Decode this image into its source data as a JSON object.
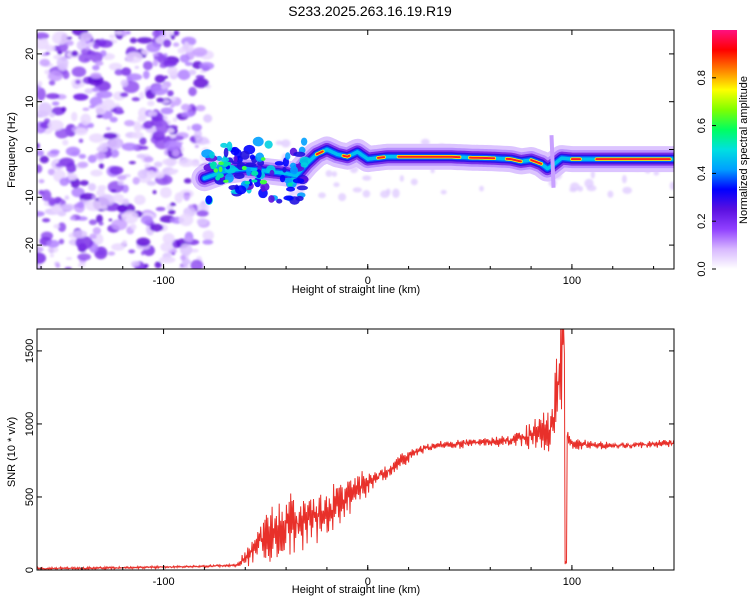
{
  "figure_title": "S233.2025.263.16.19.R19",
  "chart_data": [
    {
      "type": "heatmap",
      "title": "",
      "xlabel": "Height of straight line (km)",
      "ylabel": "Frequency (Hz)",
      "xlim": [
        -162,
        150
      ],
      "ylim": [
        -25,
        25
      ],
      "xticks": [
        -100,
        0,
        100
      ],
      "yticks": [
        -20,
        -10,
        0,
        10,
        20
      ],
      "colorbar": {
        "label": "Normalized spectral amplitude",
        "ticks": [
          0.0,
          0.2,
          0.4,
          0.6,
          0.8
        ],
        "range": [
          0,
          1
        ],
        "colormap": [
          "#ffffff",
          "#d8b8ff",
          "#9040ff",
          "#5a10e0",
          "#0000ff",
          "#00a0ff",
          "#00e0e0",
          "#00ff60",
          "#80ff00",
          "#ffff00",
          "#ff8000",
          "#ff0000",
          "#ff1080"
        ]
      },
      "noise_region_x": [
        -162,
        -80
      ],
      "signal_ridge": {
        "x": [
          -80,
          -70,
          -60,
          -50,
          -40,
          -35,
          -30,
          -25,
          -20,
          -15,
          -10,
          -5,
          0,
          10,
          20,
          30,
          40,
          50,
          60,
          70,
          75,
          80,
          85,
          88,
          90,
          95,
          100,
          110,
          120,
          130,
          140,
          150
        ],
        "freq": [
          -6,
          -4.5,
          -4,
          -4.5,
          -5,
          -5.5,
          -3,
          -1,
          0,
          -1,
          -1.5,
          -0.5,
          -2,
          -1.5,
          -1.5,
          -1.5,
          -1.5,
          -1.7,
          -1.8,
          -2,
          -2.5,
          -2.2,
          -3,
          -4,
          -3.5,
          -1.8,
          -2,
          -2,
          -2,
          -2,
          -2,
          -2
        ]
      }
    },
    {
      "type": "line",
      "title": "",
      "xlabel": "Height of straight line (km)",
      "ylabel": "SNR (10 * v/v)",
      "xlim": [
        -162,
        150
      ],
      "ylim": [
        0,
        1650
      ],
      "xticks": [
        -100,
        0,
        100
      ],
      "yticks": [
        0,
        500,
        1000,
        1500
      ],
      "line_color": "#e8302a",
      "series": [
        {
          "x": [
            -162,
            -140,
            -120,
            -100,
            -80,
            -70,
            -64,
            -60,
            -55,
            -50,
            -45,
            -40,
            -35,
            -30,
            -25,
            -20,
            -15,
            -10,
            -5,
            0,
            5,
            10,
            15,
            20,
            25,
            30,
            40,
            50,
            60,
            70,
            75,
            80,
            85,
            88,
            90,
            92,
            94,
            95,
            96,
            97,
            98,
            100,
            105,
            110,
            120,
            130,
            140,
            150
          ],
          "y": [
            10,
            12,
            15,
            20,
            25,
            30,
            35,
            80,
            150,
            220,
            270,
            290,
            320,
            330,
            360,
            390,
            450,
            500,
            560,
            600,
            640,
            680,
            730,
            780,
            820,
            840,
            860,
            870,
            880,
            890,
            900,
            920,
            940,
            960,
            1000,
            1100,
            1300,
            1500,
            1650,
            1200,
            900,
            870,
            860,
            860,
            850,
            855,
            860,
            870
          ],
          "amplitude": [
            8,
            8,
            8,
            8,
            8,
            8,
            10,
            50,
            130,
            180,
            200,
            200,
            190,
            170,
            170,
            160,
            150,
            120,
            100,
            80,
            60,
            50,
            50,
            40,
            30,
            30,
            30,
            30,
            30,
            40,
            60,
            90,
            120,
            140,
            250,
            350,
            450,
            500,
            0,
            150,
            60,
            40,
            30,
            25,
            25,
            25,
            25,
            25
          ]
        }
      ]
    }
  ]
}
